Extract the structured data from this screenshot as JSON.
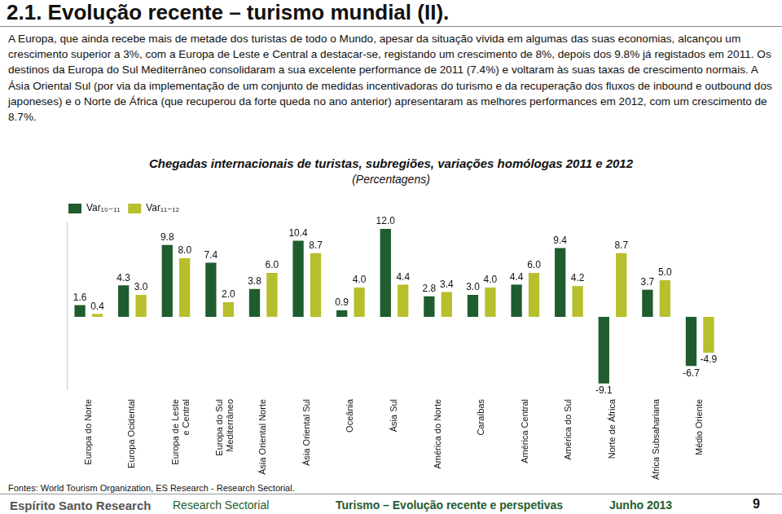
{
  "title": "2.1. Evolução recente – turismo mundial (II).",
  "paragraph": "A Europa, que ainda recebe mais de metade dos turistas de todo o Mundo, apesar da situação vivida em algumas das suas economias, alcançou um crescimento superior a 3%, com a Europa de Leste e Central a destacar-se, registando um crescimento de 8%, depois dos 9.8% já registados em 2011. Os destinos da Europa do Sul Mediterrâneo consolidaram a sua excelente performance de 2011 (7.4%) e voltaram às suas taxas de crescimento normais. A Ásia Oriental Sul (por via da implementação de um conjunto de medidas incentivadoras do turismo e da recuperação dos fluxos de inbound e outbound dos japoneses) e o Norte de África (que recuperou da forte queda no ano anterior) apresentaram as melhores performances em 2012, com um crescimento de 8.7%.",
  "chart_data": {
    "type": "bar",
    "title": "Chegadas internacionais de turistas, subregiões, variações homólogas 2011 e 2012",
    "subtitle": "(Percentagens)",
    "categories": [
      "Europa do Norte",
      "Europa Ocidental",
      "Europa de Leste e Central",
      "Europa do Sul Mediterrâneo",
      "Ásia Oriental Norte",
      "Ásia Oriental Sul",
      "Oceânia",
      "Ásia Sul",
      "América do Norte",
      "Caraíbas",
      "América Central",
      "América do Sul",
      "Norte de África",
      "África Subsahariana",
      "Médio Oriente"
    ],
    "series": [
      {
        "name": "Var₁₀₋₁₁",
        "color": "#1f5c2e",
        "values": [
          1.6,
          4.3,
          9.8,
          7.4,
          3.8,
          10.4,
          0.9,
          12.0,
          2.8,
          3.0,
          4.4,
          9.4,
          -9.1,
          3.7,
          -6.7
        ],
        "value_labels": [
          "1.6",
          "4.3",
          "9.8",
          "7.4",
          "3.8",
          "10.4",
          "0.9",
          "12.0",
          "2.8",
          "3.0",
          "4.4",
          "9.4",
          "-9.1",
          "3.7",
          "-6.7"
        ]
      },
      {
        "name": "Var₁₁₋₁₂",
        "color": "#b8bf2c",
        "values": [
          0.4,
          3.0,
          8.0,
          2.0,
          6.0,
          8.7,
          4.0,
          4.4,
          3.4,
          4.0,
          6.0,
          4.2,
          8.7,
          5.0,
          -4.9
        ],
        "value_labels": [
          "0.4",
          "3.0",
          "8.0",
          "2.0",
          "6.0",
          "8.7",
          "4.0",
          "4.4",
          "3.4",
          "4.0",
          "6.0",
          "4.2",
          "8.7",
          "5.0",
          "-4.9"
        ]
      }
    ],
    "ylim": [
      -10,
      13
    ],
    "data_labels": true,
    "tick_labels": "x",
    "grid": false,
    "legend": "top-left"
  },
  "source": "Fontes: World Tourism Organization, ES Research - Research Sectorial.",
  "footer": {
    "brand": "Espírito Santo Research",
    "section": "Research Sectorial",
    "report": "Turismo – Evolução recente e perspetivas",
    "date": "Junho 2013",
    "page": "9"
  }
}
